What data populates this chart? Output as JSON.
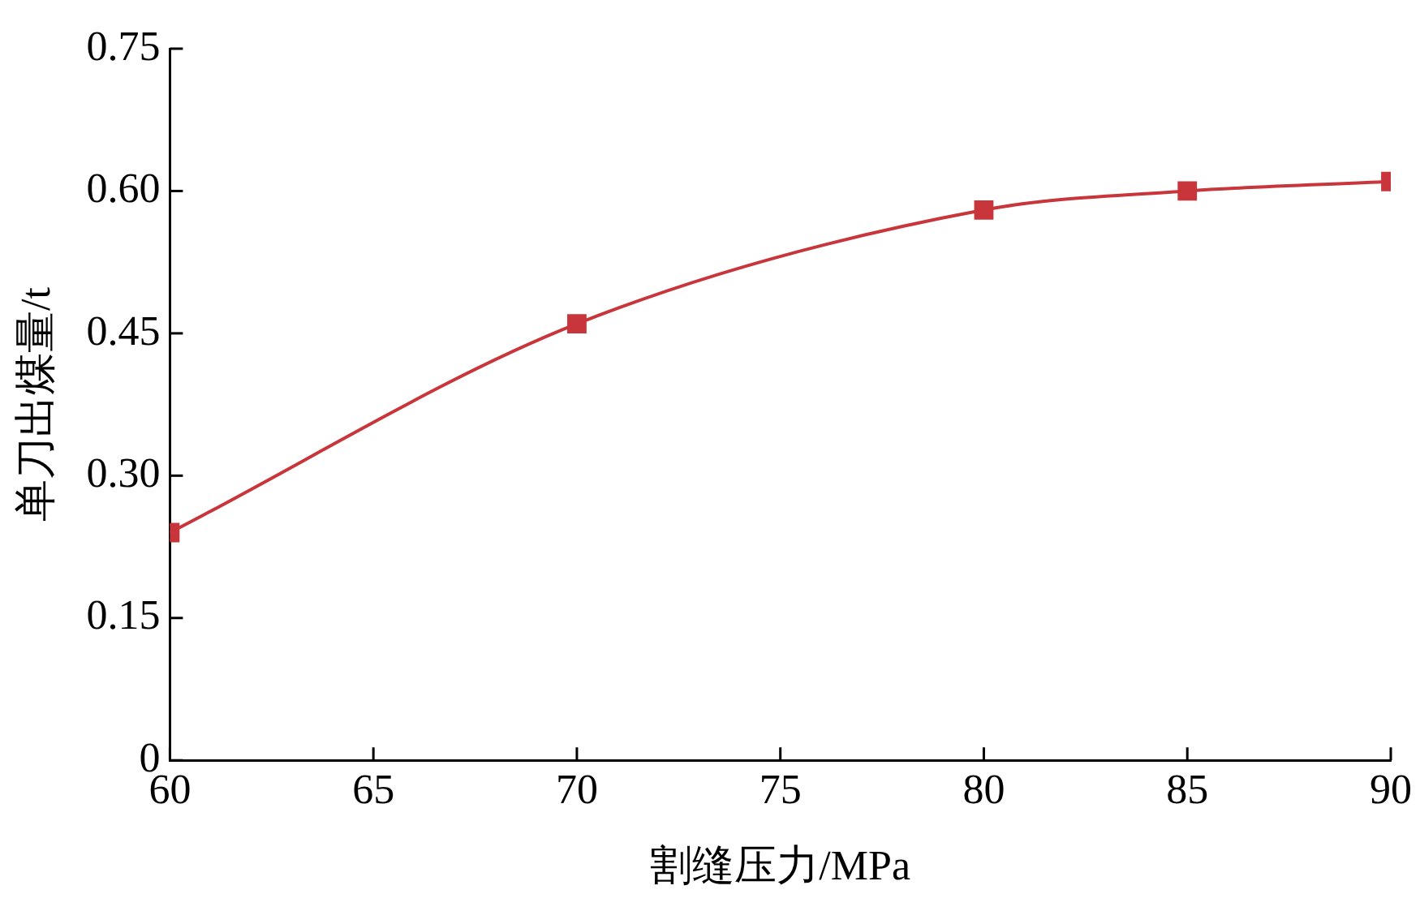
{
  "chart_data": {
    "type": "line",
    "xlabel": "割缝压力/MPa",
    "ylabel": "单刀出煤量/t",
    "x": [
      60,
      70,
      80,
      85,
      90
    ],
    "series": [
      {
        "color": "#c8353a",
        "values": [
          0.24,
          0.46,
          0.58,
          0.6,
          0.61
        ]
      }
    ],
    "xlim": [
      60,
      90
    ],
    "xticks": [
      60,
      65,
      70,
      75,
      80,
      85,
      90
    ],
    "ylim": [
      0,
      0.75
    ],
    "yticks": [
      0,
      {
        "value": 0.15,
        "label": "0.15"
      },
      {
        "value": 0.3,
        "label": "0.30"
      },
      {
        "value": 0.45,
        "label": "0.45"
      },
      {
        "value": 0.6,
        "label": "0.60"
      },
      {
        "value": 0.75,
        "label": "0.75"
      }
    ],
    "grid": false,
    "legend": false,
    "marker": "square",
    "line_style": "solid"
  }
}
